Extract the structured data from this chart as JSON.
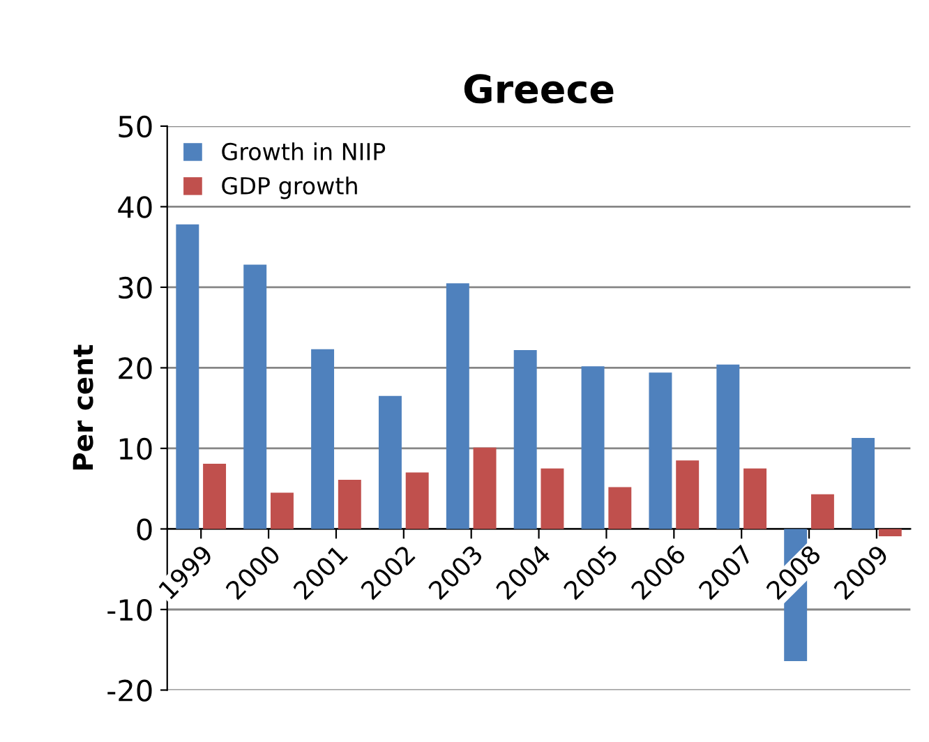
{
  "chart_data": {
    "type": "bar",
    "title": "Greece",
    "ylabel": "Per cent",
    "categories": [
      "1999",
      "2000",
      "2001",
      "2002",
      "2003",
      "2004",
      "2005",
      "2006",
      "2007",
      "2008",
      "2009"
    ],
    "series": [
      {
        "name": "Growth in NIIP",
        "color": "#4f81bd",
        "values": [
          37.8,
          32.8,
          22.3,
          16.5,
          30.5,
          22.2,
          20.2,
          19.4,
          20.4,
          -16.4,
          11.3
        ]
      },
      {
        "name": "GDP growth",
        "color": "#c0504d",
        "values": [
          8.1,
          4.5,
          6.1,
          7.0,
          10.1,
          7.5,
          5.2,
          8.5,
          7.5,
          4.3,
          -0.9
        ]
      }
    ],
    "ylim": [
      -20,
      50
    ],
    "yticks": [
      -20,
      -10,
      0,
      10,
      20,
      30,
      40,
      50
    ],
    "grid": "y",
    "legend": "top left"
  }
}
